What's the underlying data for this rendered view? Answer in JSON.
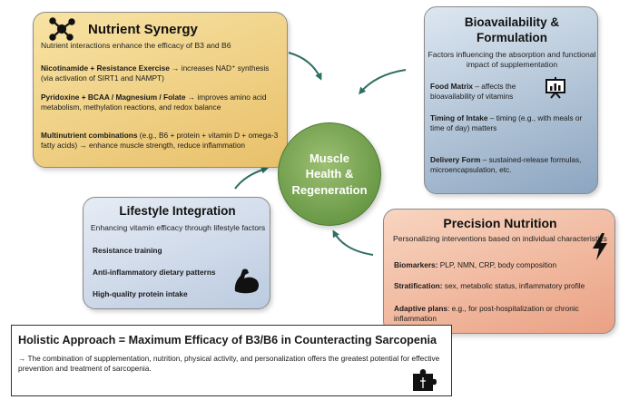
{
  "center": {
    "line1": "Muscle",
    "line2": "Health &",
    "line3": "Regeneration"
  },
  "nutrient_synergy": {
    "title": "Nutrient Synergy",
    "subtitle": "Nutrient interactions enhance the efficacy of B3 and B6",
    "item1_bold": "Nicotinamide + Resistance Exercise",
    "item1_text": " → increases NAD⁺ synthesis (via activation of SIRT1 and NAMPT)",
    "item2_bold": "Pyridoxine + BCAA / Magnesium / Folate",
    "item2_text": " → improves amino acid metabolism, methylation reactions, and redox balance",
    "item3_bold": "Multinutrient combinations",
    "item3_text": " (e.g., B6 + protein + vitamin D + omega-3 fatty acids) → enhance muscle strength, reduce inflammation",
    "icon": "molecule-icon"
  },
  "bioavailability": {
    "title_line1": "Bioavailability &",
    "title_line2": "Formulation",
    "subtitle": "Factors influencing the absorption and functional impact of supplementation",
    "item1_bold": "Food Matrix",
    "item1_text": " – affects the bioavailability of vitamins",
    "item2_bold": "Timing of Intake",
    "item2_text": " – timing (e.g., with meals or time of day) matters",
    "item3_bold": "Delivery Form",
    "item3_text": " – sustained-release formulas, microencapsulation, etc.",
    "icon": "presentation-chart-icon"
  },
  "lifestyle": {
    "title": "Lifestyle Integration",
    "subtitle": "Enhancing vitamin efficacy through lifestyle factors",
    "item1": "Resistance training",
    "item2": "Anti-inflammatory dietary patterns",
    "item3": "High-quality protein intake",
    "icon": "flexed-arm-icon"
  },
  "precision": {
    "title": "Precision Nutrition",
    "subtitle": "Personalizing interventions based on individual characteristics",
    "item1_bold": "Biomarkers:",
    "item1_text": " PLP, NMN, CRP, body composition",
    "item2_bold": "Stratification:",
    "item2_text": " sex, metabolic status, inflammatory profile",
    "item3_bold": "Adaptive plans",
    "item3_text": ": e.g., for post-hospitalization or chronic inflammation",
    "icon": "lightning-icon"
  },
  "holistic": {
    "title": "Holistic Approach = Maximum Efficacy of B3/B6 in Counteracting Sarcopenia",
    "text": "→ The combination of supplementation, nutrition, physical activity, and personalization offers the greatest potential for effective prevention and treatment of sarcopenia.",
    "icon": "puzzle-icon"
  },
  "colors": {
    "nutrient": "#e8c06a",
    "bioavailability": "#8ca5c0",
    "lifestyle": "#bccbe0",
    "precision": "#eaa184",
    "center": "#6a9a47",
    "arrow": "#2f6f63"
  }
}
